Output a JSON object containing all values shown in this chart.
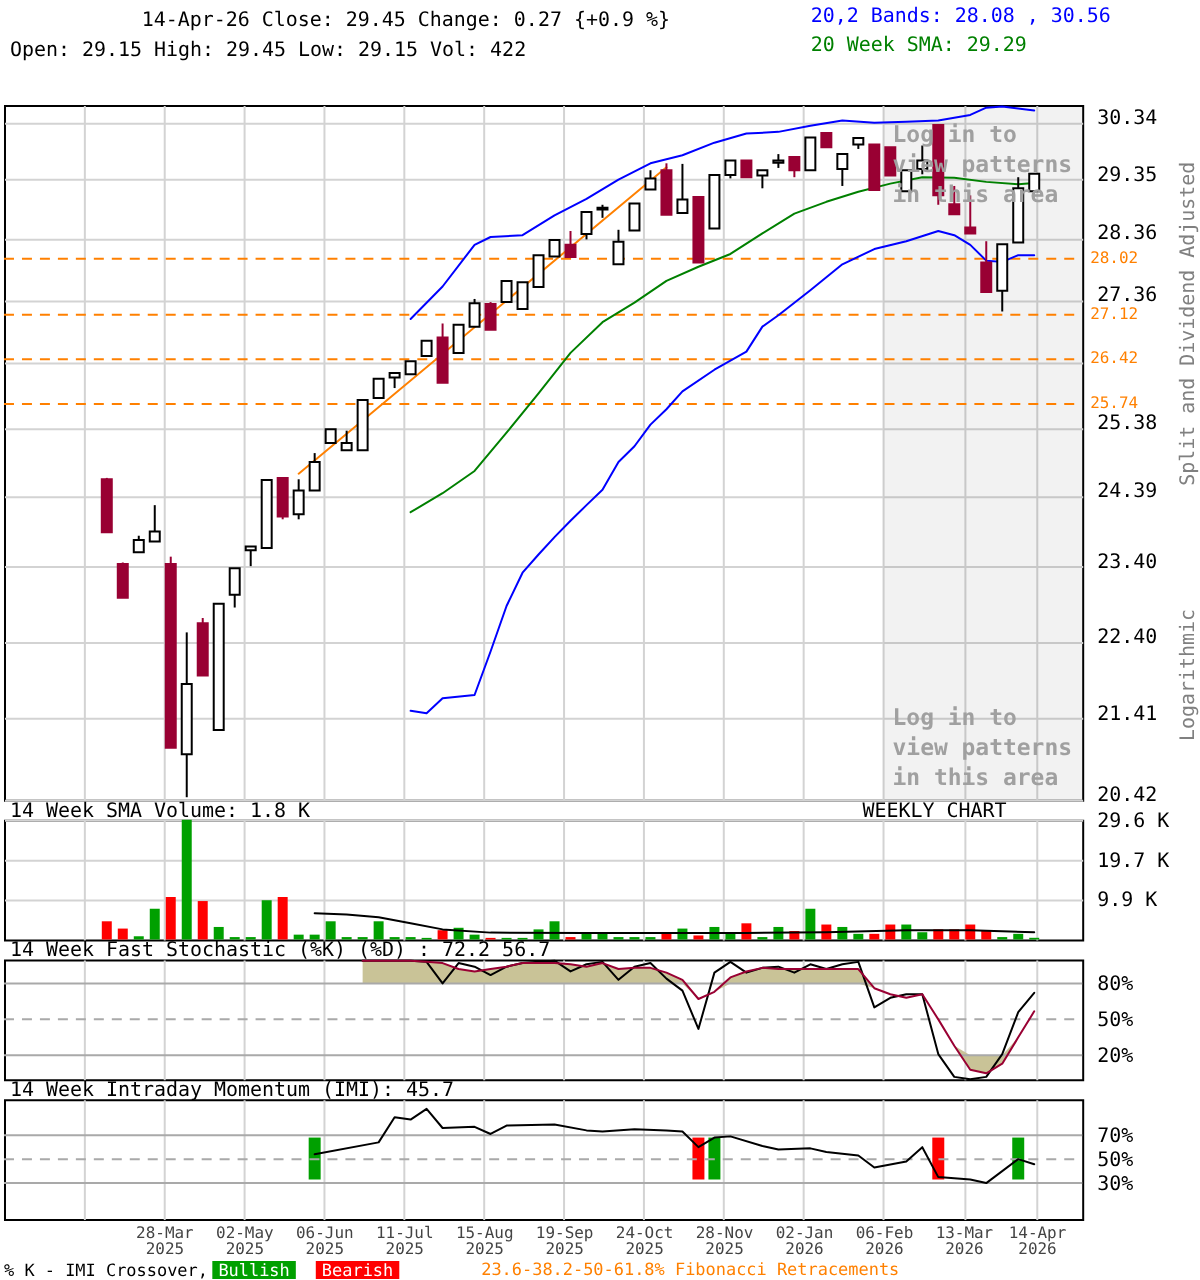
{
  "chart_data": [
    {
      "type": "candlestick",
      "title": "14-Apr-26 Close: 29.45 Change: 0.27 {+0.9 %}",
      "subtitle": "Open: 29.15 High: 29.45 Low: 29.15 Vol: 422",
      "ylabel": "Split and Dividend Adjusted",
      "x": [
        "2025-03-03",
        "2025-03-10",
        "2025-03-17",
        "2025-03-24",
        "2025-03-31",
        "2025-04-07",
        "2025-04-14",
        "2025-04-21",
        "2025-04-28",
        "2025-05-05",
        "2025-05-12",
        "2025-05-19",
        "2025-05-26",
        "2025-06-02",
        "2025-06-09",
        "2025-06-16",
        "2025-06-23",
        "2025-06-30",
        "2025-07-07",
        "2025-07-14",
        "2025-07-21",
        "2025-07-28",
        "2025-08-04",
        "2025-08-11",
        "2025-08-18",
        "2025-08-25",
        "2025-09-01",
        "2025-09-08",
        "2025-09-15",
        "2025-09-22",
        "2025-09-29",
        "2025-10-06",
        "2025-10-13",
        "2025-10-20",
        "2025-10-27",
        "2025-11-03",
        "2025-11-10",
        "2025-11-17",
        "2025-11-24",
        "2025-12-01",
        "2025-12-08",
        "2025-12-15",
        "2025-12-22",
        "2025-12-29",
        "2026-01-05",
        "2026-01-12",
        "2026-01-19",
        "2026-01-26",
        "2026-02-02",
        "2026-02-09",
        "2026-02-16",
        "2026-02-23",
        "2026-03-02",
        "2026-03-09",
        "2026-03-16",
        "2026-03-23",
        "2026-03-30",
        "2026-04-06",
        "2026-04-13"
      ],
      "ohlc": [
        [
          24.63,
          24.65,
          23.88,
          23.88
        ],
        [
          23.44,
          23.46,
          22.98,
          22.98
        ],
        [
          23.6,
          23.83,
          23.6,
          23.77
        ],
        [
          23.75,
          24.26,
          23.75,
          23.89
        ],
        [
          23.44,
          23.54,
          21.05,
          21.05
        ],
        [
          20.97,
          22.52,
          20.45,
          21.85
        ],
        [
          22.64,
          22.71,
          21.96,
          21.96
        ],
        [
          21.27,
          22.9,
          21.27,
          22.9
        ],
        [
          23.02,
          23.38,
          22.85,
          23.38
        ],
        [
          23.63,
          23.68,
          23.41,
          23.68
        ],
        [
          23.66,
          24.62,
          23.66,
          24.62
        ],
        [
          24.65,
          24.65,
          24.06,
          24.1
        ],
        [
          24.13,
          24.63,
          24.06,
          24.47
        ],
        [
          24.47,
          25.01,
          24.47,
          24.88
        ],
        [
          25.16,
          25.36,
          25.16,
          25.36
        ],
        [
          25.05,
          25.34,
          25.05,
          25.16
        ],
        [
          25.05,
          25.8,
          25.05,
          25.8
        ],
        [
          25.83,
          26.12,
          25.83,
          26.12
        ],
        [
          26.14,
          26.21,
          25.98,
          26.21
        ],
        [
          26.19,
          26.39,
          26.19,
          26.39
        ],
        [
          26.47,
          26.71,
          26.47,
          26.71
        ],
        [
          26.76,
          26.98,
          26.06,
          26.06
        ],
        [
          26.52,
          26.96,
          26.52,
          26.96
        ],
        [
          26.93,
          27.37,
          26.93,
          27.3
        ],
        [
          27.29,
          27.32,
          26.88,
          26.88
        ],
        [
          27.32,
          27.66,
          27.32,
          27.66
        ],
        [
          27.21,
          27.64,
          27.21,
          27.64
        ],
        [
          27.56,
          28.08,
          27.56,
          28.08
        ],
        [
          28.06,
          28.33,
          28.06,
          28.33
        ],
        [
          28.25,
          28.48,
          28.05,
          28.05
        ],
        [
          28.43,
          28.8,
          28.34,
          28.8
        ],
        [
          28.84,
          28.92,
          28.7,
          28.87
        ],
        [
          27.93,
          28.5,
          27.93,
          28.3
        ],
        [
          28.49,
          28.94,
          28.49,
          28.94
        ],
        [
          29.18,
          29.51,
          29.18,
          29.37
        ],
        [
          29.51,
          29.63,
          28.75,
          28.75
        ],
        [
          28.78,
          29.62,
          28.78,
          29.01
        ],
        [
          29.05,
          29.05,
          27.96,
          27.96
        ],
        [
          28.52,
          29.43,
          28.52,
          29.43
        ],
        [
          29.43,
          29.68,
          29.37,
          29.68
        ],
        [
          29.68,
          29.68,
          29.39,
          29.39
        ],
        [
          29.42,
          29.51,
          29.2,
          29.51
        ],
        [
          29.64,
          29.79,
          29.55,
          29.68
        ],
        [
          29.74,
          29.74,
          29.39,
          29.51
        ],
        [
          29.51,
          30.08,
          29.51,
          30.08
        ],
        [
          30.16,
          30.16,
          29.91,
          29.91
        ],
        [
          29.53,
          29.79,
          29.24,
          29.79
        ],
        [
          29.96,
          30.07,
          29.88,
          30.07
        ],
        [
          29.96,
          29.96,
          29.17,
          29.17
        ],
        [
          29.91,
          29.91,
          29.42,
          29.42
        ],
        [
          29.15,
          29.51,
          29.15,
          29.51
        ],
        [
          29.53,
          29.94,
          29.44,
          29.68
        ],
        [
          30.3,
          30.3,
          28.92,
          29.08
        ],
        [
          28.93,
          29.24,
          28.76,
          28.76
        ],
        [
          28.54,
          29.08,
          28.44,
          28.44
        ],
        [
          27.96,
          28.31,
          27.48,
          27.48
        ],
        [
          27.5,
          28.26,
          27.17,
          28.26
        ],
        [
          28.29,
          29.39,
          28.29,
          29.2
        ],
        [
          29.15,
          29.45,
          29.15,
          29.45
        ]
      ],
      "colors": [
        "#990033",
        "#990033",
        "#ffffff",
        "#ffffff",
        "#990033",
        "#ffffff",
        "#990033",
        "#ffffff",
        "#ffffff",
        "#ffffff",
        "#ffffff",
        "#990033",
        "#ffffff",
        "#ffffff",
        "#ffffff",
        "#ffffff",
        "#ffffff",
        "#ffffff",
        "#ffffff",
        "#ffffff",
        "#ffffff",
        "#990033",
        "#ffffff",
        "#ffffff",
        "#990033",
        "#ffffff",
        "#ffffff",
        "#ffffff",
        "#ffffff",
        "#990033",
        "#ffffff",
        "#ffffff",
        "#ffffff",
        "#ffffff",
        "#ffffff",
        "#990033",
        "#ffffff",
        "#990033",
        "#ffffff",
        "#ffffff",
        "#990033",
        "#ffffff",
        "#ffffff",
        "#990033",
        "#ffffff",
        "#990033",
        "#ffffff",
        "#ffffff",
        "#990033",
        "#990033",
        "#ffffff",
        "#ffffff",
        "#990033",
        "#990033",
        "#990033",
        "#990033",
        "#ffffff",
        "#ffffff",
        "#ffffff"
      ],
      "series": [
        {
          "name": "20,2 Bands: 28.08 , 30.56",
          "type": "line",
          "color": "#0000ff",
          "x": [
            "2025-07-14",
            "2025-07-28",
            "2025-08-11",
            "2025-08-18",
            "2025-09-01",
            "2025-09-15",
            "2025-09-29",
            "2025-10-13",
            "2025-10-27",
            "2025-11-10",
            "2025-11-24",
            "2025-12-08",
            "2025-12-22",
            "2026-01-05",
            "2026-01-19",
            "2026-02-02",
            "2026-02-16",
            "2026-03-02",
            "2026-03-16",
            "2026-03-23",
            "2026-03-30",
            "2026-04-13"
          ],
          "values": [
            27.05,
            27.57,
            28.25,
            28.38,
            28.41,
            28.74,
            29.02,
            29.35,
            29.63,
            29.77,
            29.99,
            30.15,
            30.18,
            30.29,
            30.38,
            30.34,
            30.36,
            30.38,
            30.48,
            30.61,
            30.63,
            30.56
          ]
        },
        {
          "type": "line",
          "color": "#0000ff",
          "x": [
            "2025-07-14",
            "2025-07-21",
            "2025-07-28",
            "2025-08-11",
            "2025-08-18",
            "2025-08-25",
            "2025-09-01",
            "2025-09-08",
            "2025-09-15",
            "2025-09-22",
            "2025-09-29",
            "2025-10-06",
            "2025-10-13",
            "2025-10-20",
            "2025-10-27",
            "2025-11-03",
            "2025-11-10",
            "2025-11-24",
            "2025-12-08",
            "2025-12-15",
            "2025-12-22",
            "2026-01-05",
            "2026-01-19",
            "2026-02-02",
            "2026-02-16",
            "2026-03-02",
            "2026-03-09",
            "2026-03-16",
            "2026-03-23",
            "2026-03-30",
            "2026-04-06",
            "2026-04-13"
          ],
          "values": [
            21.51,
            21.48,
            21.67,
            21.71,
            22.27,
            22.87,
            23.32,
            23.57,
            23.81,
            24.04,
            24.26,
            24.48,
            24.88,
            25.11,
            25.43,
            25.66,
            25.93,
            26.26,
            26.54,
            26.93,
            27.11,
            27.51,
            27.93,
            28.18,
            28.31,
            28.48,
            28.41,
            28.25,
            27.99,
            27.97,
            28.08,
            28.08
          ]
        },
        {
          "name": "20 Week SMA: 29.29",
          "type": "line",
          "color": "#008000",
          "x": [
            "2025-07-14",
            "2025-07-28",
            "2025-08-11",
            "2025-08-25",
            "2025-09-08",
            "2025-09-22",
            "2025-10-06",
            "2025-10-20",
            "2025-11-03",
            "2025-11-17",
            "2025-12-01",
            "2025-12-15",
            "2025-12-29",
            "2026-01-12",
            "2026-01-26",
            "2026-02-09",
            "2026-02-23",
            "2026-03-09",
            "2026-03-23",
            "2026-04-06",
            "2026-04-13"
          ],
          "values": [
            24.16,
            24.43,
            24.75,
            25.31,
            25.9,
            26.52,
            27.0,
            27.31,
            27.66,
            27.89,
            28.1,
            28.44,
            28.77,
            28.97,
            29.14,
            29.28,
            29.39,
            29.38,
            29.31,
            29.27,
            29.29
          ]
        },
        {
          "type": "line",
          "color": "#ff8000",
          "x": [
            "2025-05-26",
            "2025-11-03"
          ],
          "values": [
            24.71,
            29.56
          ]
        }
      ],
      "xlim": [
        "2025-01-17",
        "2026-05-04"
      ],
      "xticks": [
        {
          "value": "2025-02-21",
          "label": null
        },
        {
          "value": "2025-03-28",
          "label": null
        },
        {
          "value": "2025-05-02",
          "label": null
        },
        {
          "value": "2025-06-06",
          "label": null
        },
        {
          "value": "2025-07-11",
          "label": null
        },
        {
          "value": "2025-08-15",
          "label": null
        },
        {
          "value": "2025-09-19",
          "label": null
        },
        {
          "value": "2025-10-24",
          "label": null
        },
        {
          "value": "2025-11-28",
          "label": null
        },
        {
          "value": "2026-01-02",
          "label": null
        },
        {
          "value": "2026-02-06",
          "label": null
        },
        {
          "value": "2026-03-13",
          "label": null
        },
        {
          "value": "2026-04-14",
          "label": null
        }
      ],
      "ylim": [
        20.42,
        30.66
      ],
      "yticks": [
        20.42,
        21.41,
        {
          "value": 22.4,
          "label": "22.40"
        },
        {
          "value": 23.4,
          "label": "23.40"
        },
        24.39,
        25.38,
        {
          "value": 26.37,
          "label": null
        },
        27.36,
        28.36,
        29.35,
        30.34
      ],
      "log": "y",
      "grid": true,
      "tick_labels": "y",
      "legend": "top right",
      "ref_lines": [
        {
          "axis": "y",
          "value": 28.02,
          "label": "28.02",
          "color": "#ff8000",
          "line_style": "dashed"
        },
        {
          "axis": "y",
          "value": 27.12,
          "label": "27.12",
          "color": "#ff8000",
          "line_style": "dashed"
        },
        {
          "axis": "y",
          "value": 26.42,
          "label": "26.42",
          "color": "#ff8000",
          "line_style": "dashed"
        },
        {
          "axis": "y",
          "value": 25.74,
          "label": "25.74",
          "color": "#ff8000",
          "line_style": "dashed"
        }
      ],
      "bands": [
        {
          "axis": "x",
          "from": "2026-02-06",
          "to": "2026-05-04",
          "color": "#f2f2f2"
        }
      ],
      "annotations": [
        "Log in to\nview patterns\nin this area",
        "Log in to\nview patterns\nin this area",
        "Logarithmic",
        "23.6-38.2-50-61.8% Fibonacci Retracements"
      ]
    },
    {
      "type": "bar",
      "title": "14 Week SMA Volume: 1.8 K",
      "x": [
        "2025-03-03",
        "2025-03-10",
        "2025-03-17",
        "2025-03-24",
        "2025-03-31",
        "2025-04-07",
        "2025-04-14",
        "2025-04-21",
        "2025-04-28",
        "2025-05-05",
        "2025-05-12",
        "2025-05-19",
        "2025-05-26",
        "2025-06-02",
        "2025-06-09",
        "2025-06-16",
        "2025-06-23",
        "2025-06-30",
        "2025-07-07",
        "2025-07-14",
        "2025-07-21",
        "2025-07-28",
        "2025-08-04",
        "2025-08-11",
        "2025-08-18",
        "2025-08-25",
        "2025-09-01",
        "2025-09-08",
        "2025-09-15",
        "2025-09-22",
        "2025-09-29",
        "2025-10-06",
        "2025-10-13",
        "2025-10-20",
        "2025-10-27",
        "2025-11-03",
        "2025-11-10",
        "2025-11-17",
        "2025-11-24",
        "2025-12-01",
        "2025-12-08",
        "2025-12-15",
        "2025-12-22",
        "2025-12-29",
        "2026-01-05",
        "2026-01-12",
        "2026-01-19",
        "2026-01-26",
        "2026-02-02",
        "2026-02-09",
        "2026-02-16",
        "2026-02-23",
        "2026-03-02",
        "2026-03-09",
        "2026-03-16",
        "2026-03-23",
        "2026-03-30",
        "2026-04-06",
        "2026-04-13"
      ],
      "series": [
        {
          "type": "bar",
          "colors": [
            "#ff0000",
            "#ff0000",
            "#00a000",
            "#00a000",
            "#ff0000",
            "#00a000",
            "#ff0000",
            "#00a000",
            "#00a000",
            "#00a000",
            "#00a000",
            "#ff0000",
            "#00a000",
            "#00a000",
            "#00a000",
            "#00a000",
            "#00a000",
            "#00a000",
            "#00a000",
            "#00a000",
            "#00a000",
            "#ff0000",
            "#00a000",
            "#00a000",
            "#ff0000",
            "#00a000",
            "#00a000",
            "#00a000",
            "#00a000",
            "#ff0000",
            "#00a000",
            "#00a000",
            "#00a000",
            "#00a000",
            "#00a000",
            "#ff0000",
            "#00a000",
            "#ff0000",
            "#00a000",
            "#00a000",
            "#ff0000",
            "#00a000",
            "#00a000",
            "#ff0000",
            "#00a000",
            "#ff0000",
            "#00a000",
            "#00a000",
            "#ff0000",
            "#ff0000",
            "#00a000",
            "#00a000",
            "#ff0000",
            "#ff0000",
            "#ff0000",
            "#ff0000",
            "#00a000",
            "#00a000",
            "#00a000"
          ],
          "values": [
            4500,
            2700,
            800,
            7600,
            10500,
            29600,
            9500,
            3100,
            600,
            600,
            9700,
            10500,
            1200,
            1200,
            4500,
            600,
            600,
            4500,
            600,
            600,
            400,
            2300,
            2900,
            1200,
            400,
            400,
            400,
            2500,
            4500,
            600,
            1400,
            1400,
            600,
            600,
            600,
            1600,
            2700,
            1000,
            3100,
            1600,
            4000,
            600,
            3100,
            2100,
            7600,
            3700,
            3100,
            1400,
            1400,
            3700,
            3700,
            1800,
            2500,
            2500,
            3700,
            2300,
            600,
            1400,
            422
          ]
        },
        {
          "type": "line",
          "color": "#000000",
          "x": [
            "2025-06-02",
            "2025-06-16",
            "2025-06-30",
            "2025-07-14",
            "2025-07-28",
            "2025-08-18",
            "2025-09-29",
            "2025-12-08",
            "2026-01-12",
            "2026-02-16",
            "2026-03-16",
            "2026-04-13"
          ],
          "values": [
            6500,
            6200,
            5500,
            4000,
            2500,
            1700,
            1600,
            1600,
            1800,
            2300,
            2300,
            1800
          ]
        }
      ],
      "xlim": [
        "2025-01-17",
        "2026-05-04"
      ],
      "xticks": [
        {
          "value": "2025-02-21",
          "label": null
        },
        {
          "value": "2025-03-28",
          "label": null
        },
        {
          "value": "2025-05-02",
          "label": null
        },
        {
          "value": "2025-06-06",
          "label": null
        },
        {
          "value": "2025-07-11",
          "label": null
        },
        {
          "value": "2025-08-15",
          "label": null
        },
        {
          "value": "2025-09-19",
          "label": null
        },
        {
          "value": "2025-10-24",
          "label": null
        },
        {
          "value": "2025-11-28",
          "label": null
        },
        {
          "value": "2026-01-02",
          "label": null
        },
        {
          "value": "2026-02-06",
          "label": null
        },
        {
          "value": "2026-03-13",
          "label": null
        },
        {
          "value": "2026-04-14",
          "label": null
        }
      ],
      "ylim": [
        0,
        29600
      ],
      "yticks": [
        {
          "value": 9900,
          "label": "9.9 K"
        },
        {
          "value": 19700,
          "label": "19.7 K"
        },
        {
          "value": 29600,
          "label": "29.6 K"
        }
      ],
      "grid": true,
      "tick_labels": "y",
      "annotations": [
        "WEEKLY CHART"
      ]
    },
    {
      "type": "line",
      "title": "14 Week Fast Stochastic (%K) (%D) : 72.2 56.7",
      "x": [
        "2025-06-23",
        "2025-06-30",
        "2025-07-07",
        "2025-07-14",
        "2025-07-21",
        "2025-07-28",
        "2025-08-04",
        "2025-08-11",
        "2025-08-18",
        "2025-08-25",
        "2025-09-01",
        "2025-09-08",
        "2025-09-15",
        "2025-09-22",
        "2025-09-29",
        "2025-10-06",
        "2025-10-13",
        "2025-10-20",
        "2025-10-27",
        "2025-11-03",
        "2025-11-10",
        "2025-11-17",
        "2025-11-24",
        "2025-12-01",
        "2025-12-08",
        "2025-12-15",
        "2025-12-22",
        "2025-12-29",
        "2026-01-05",
        "2026-01-12",
        "2026-01-19",
        "2026-01-26",
        "2026-02-02",
        "2026-02-09",
        "2026-02-16",
        "2026-02-23",
        "2026-03-02",
        "2026-03-09",
        "2026-03-16",
        "2026-03-23",
        "2026-03-30",
        "2026-04-06",
        "2026-04-13"
      ],
      "series": [
        {
          "type": "line",
          "color": "#000000",
          "values": [
            99,
            99,
            99,
            99,
            98,
            80,
            97,
            94,
            87,
            94,
            97,
            98,
            99,
            90,
            96,
            98,
            83,
            94,
            97,
            84,
            74,
            42,
            89,
            98,
            89,
            93,
            94,
            89,
            96,
            92,
            96,
            98,
            60,
            68,
            71,
            71,
            21,
            2,
            0,
            2,
            21,
            56,
            72.2
          ]
        },
        {
          "type": "line",
          "color": "#990033",
          "values": [
            99,
            99,
            99,
            99,
            98,
            97,
            92,
            90,
            92,
            94,
            97,
            97,
            97,
            96,
            94,
            97,
            92,
            93,
            93,
            89,
            83,
            67,
            73,
            85,
            90,
            93,
            92,
            92,
            92,
            92,
            92,
            92,
            76,
            71,
            68,
            71,
            50,
            28,
            8,
            5,
            13,
            35,
            56.7
          ],
          "lower": [
            80,
            80,
            80,
            80,
            80,
            80,
            80,
            80,
            80,
            80,
            80,
            80,
            80,
            80,
            80,
            80,
            80,
            80,
            80,
            80,
            80,
            67,
            73,
            80,
            80,
            80,
            80,
            80,
            80,
            80,
            80,
            80,
            76,
            71,
            68,
            71,
            50,
            28,
            8,
            5,
            13,
            35,
            56.7
          ],
          "upper": [
            99,
            99,
            99,
            99,
            98,
            97,
            92,
            90,
            92,
            94,
            97,
            97,
            97,
            96,
            94,
            97,
            92,
            93,
            93,
            89,
            83,
            67,
            73,
            85,
            90,
            93,
            92,
            92,
            92,
            92,
            92,
            92,
            76,
            71,
            68,
            71,
            50,
            28,
            20,
            20,
            20,
            35,
            56.7
          ]
        }
      ],
      "xlim": [
        "2025-01-17",
        "2026-05-04"
      ],
      "xticks": [
        {
          "value": "2025-02-21",
          "label": null
        },
        {
          "value": "2025-03-28",
          "label": null
        },
        {
          "value": "2025-05-02",
          "label": null
        },
        {
          "value": "2025-06-06",
          "label": null
        },
        {
          "value": "2025-07-11",
          "label": null
        },
        {
          "value": "2025-08-15",
          "label": null
        },
        {
          "value": "2025-09-19",
          "label": null
        },
        {
          "value": "2025-10-24",
          "label": null
        },
        {
          "value": "2025-11-28",
          "label": null
        },
        {
          "value": "2026-01-02",
          "label": null
        },
        {
          "value": "2026-02-06",
          "label": null
        },
        {
          "value": "2026-03-13",
          "label": null
        },
        {
          "value": "2026-04-14",
          "label": null
        }
      ],
      "ylim": [
        0,
        100
      ],
      "yticks": [
        {
          "value": 20,
          "label": "20%"
        },
        {
          "value": 50,
          "label": "50%"
        },
        {
          "value": 80,
          "label": "80%"
        }
      ],
      "grid": "x",
      "tick_labels": "y",
      "ref_lines": [
        {
          "axis": "y",
          "value": 80,
          "color": "#a9a9a9"
        },
        {
          "axis": "y",
          "value": 50,
          "color": "#a9a9a9",
          "line_style": "dashed"
        },
        {
          "axis": "y",
          "value": 20,
          "color": "#a9a9a9"
        }
      ]
    },
    {
      "type": "line",
      "title": "14 Week Intraday Momentum (IMI): 45.7",
      "legend_title": "% K - IMI Crossover,",
      "series": [
        {
          "name": "Bullish",
          "type": "bar",
          "color": "#00a000",
          "x": [
            "2025-06-02",
            "2025-11-24",
            "2026-04-06"
          ],
          "values": [
            35,
            35,
            35
          ],
          "base": [
            33,
            33,
            33
          ]
        },
        {
          "name": "Bearish",
          "type": "bar",
          "color": "#ff0000",
          "x": [
            "2025-11-17",
            "2026-03-02"
          ],
          "values": [
            35,
            35
          ],
          "base": [
            33,
            33
          ]
        },
        {
          "type": "line",
          "color": "#000000",
          "x": [
            "2025-06-02",
            "2025-06-30",
            "2025-07-07",
            "2025-07-14",
            "2025-07-21",
            "2025-07-28",
            "2025-08-11",
            "2025-08-18",
            "2025-08-25",
            "2025-09-15",
            "2025-09-29",
            "2025-10-06",
            "2025-10-20",
            "2025-11-03",
            "2025-11-10",
            "2025-11-17",
            "2025-11-24",
            "2025-12-01",
            "2025-12-15",
            "2025-12-22",
            "2026-01-05",
            "2026-01-12",
            "2026-01-26",
            "2026-02-02",
            "2026-02-16",
            "2026-02-23",
            "2026-03-02",
            "2026-03-09",
            "2026-03-16",
            "2026-03-23",
            "2026-04-06",
            "2026-04-13"
          ],
          "values": [
            54,
            64,
            85,
            83,
            92,
            76,
            77,
            71,
            78,
            79,
            74,
            73,
            75,
            74,
            73,
            60,
            68,
            69,
            61,
            58,
            59,
            56,
            53,
            43,
            48,
            60,
            35,
            34,
            33,
            30,
            50,
            45.7
          ]
        }
      ],
      "xlim": [
        "2025-01-17",
        "2026-05-04"
      ],
      "xticks": [
        {
          "value": "2025-02-21",
          "label": null
        },
        {
          "value": "2025-03-28",
          "label": "28-Mar\n2025"
        },
        {
          "value": "2025-05-02",
          "label": "02-May\n2025"
        },
        {
          "value": "2025-06-06",
          "label": "06-Jun\n2025"
        },
        {
          "value": "2025-07-11",
          "label": "11-Jul\n2025"
        },
        {
          "value": "2025-08-15",
          "label": "15-Aug\n2025"
        },
        {
          "value": "2025-09-19",
          "label": "19-Sep\n2025"
        },
        {
          "value": "2025-10-24",
          "label": "24-Oct\n2025"
        },
        {
          "value": "2025-11-28",
          "label": "28-Nov\n2025"
        },
        {
          "value": "2026-01-02",
          "label": "02-Jan\n2026"
        },
        {
          "value": "2026-02-06",
          "label": "06-Feb\n2026"
        },
        {
          "value": "2026-03-13",
          "label": "13-Mar\n2026"
        },
        {
          "value": "2026-04-14",
          "label": "14-Apr\n2026"
        }
      ],
      "ylim": [
        0,
        100
      ],
      "yticks": [
        {
          "value": 30,
          "label": "30%"
        },
        {
          "value": 50,
          "label": "50%"
        },
        {
          "value": 70,
          "label": "70%"
        }
      ],
      "grid": "x",
      "legend": "bottom",
      "ref_lines": [
        {
          "axis": "y",
          "value": 70,
          "color": "#a9a9a9"
        },
        {
          "axis": "y",
          "value": 50,
          "color": "#a9a9a9",
          "line_style": "dashed"
        },
        {
          "axis": "y",
          "value": 30,
          "color": "#a9a9a9"
        }
      ]
    }
  ]
}
